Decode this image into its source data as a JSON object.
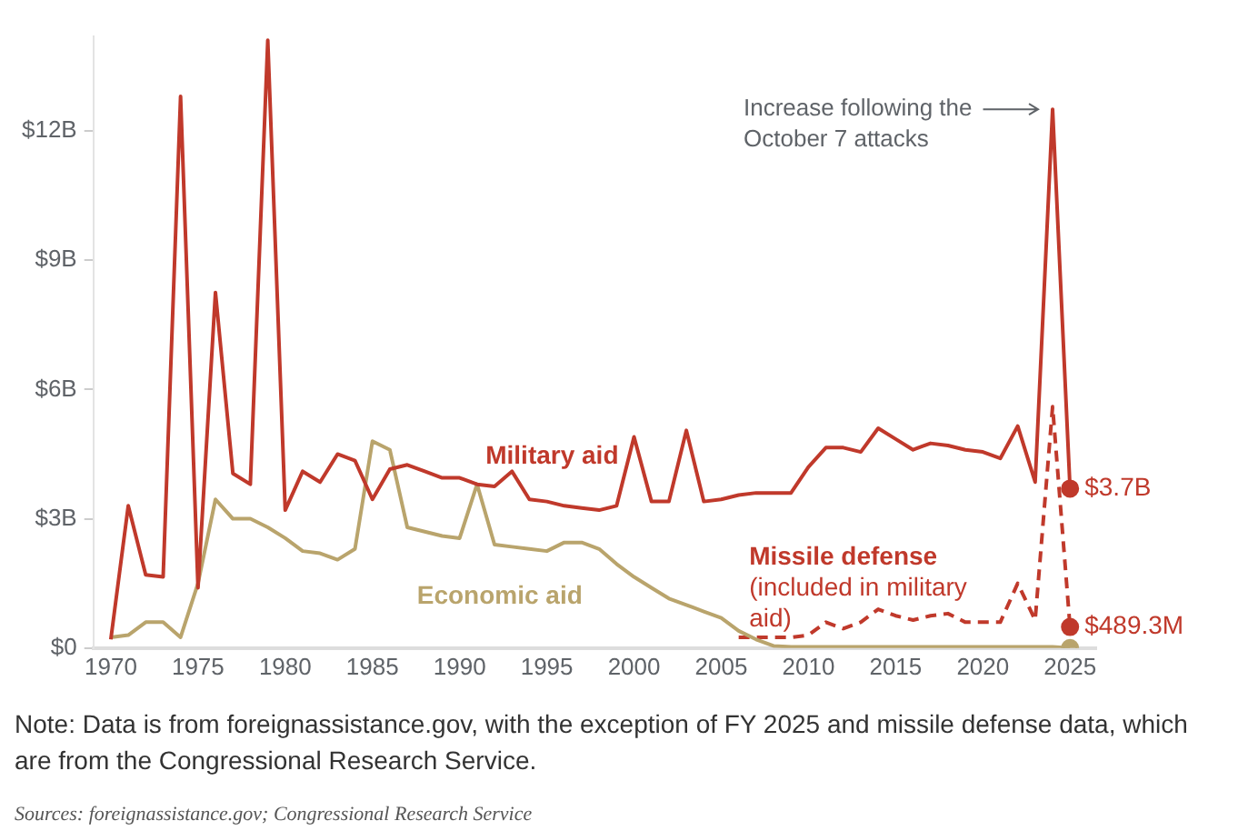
{
  "chart_data": {
    "type": "line",
    "x": [
      1970,
      1971,
      1972,
      1973,
      1974,
      1975,
      1976,
      1977,
      1978,
      1979,
      1980,
      1981,
      1982,
      1983,
      1984,
      1985,
      1986,
      1987,
      1988,
      1989,
      1990,
      1991,
      1992,
      1993,
      1994,
      1995,
      1996,
      1997,
      1998,
      1999,
      2000,
      2001,
      2002,
      2003,
      2004,
      2005,
      2006,
      2007,
      2008,
      2009,
      2010,
      2011,
      2012,
      2013,
      2014,
      2015,
      2016,
      2017,
      2018,
      2019,
      2020,
      2021,
      2022,
      2023,
      2024,
      2025
    ],
    "series": [
      {
        "name": "Military aid",
        "color": "#c0392b",
        "line_style": "solid",
        "values": [
          0.2,
          3.3,
          1.7,
          1.65,
          12.8,
          1.4,
          8.25,
          4.05,
          3.8,
          14.1,
          3.2,
          4.1,
          3.85,
          4.5,
          4.35,
          3.45,
          4.15,
          4.25,
          4.1,
          3.95,
          3.95,
          3.8,
          3.75,
          4.1,
          3.45,
          3.4,
          3.3,
          3.25,
          3.2,
          3.3,
          4.9,
          3.4,
          3.4,
          5.05,
          3.4,
          3.45,
          3.55,
          3.6,
          3.6,
          3.6,
          4.2,
          4.65,
          4.65,
          4.55,
          5.1,
          4.85,
          4.6,
          4.75,
          4.7,
          4.6,
          4.55,
          4.4,
          5.15,
          3.85,
          12.5,
          3.7
        ],
        "value_labels": [
          null,
          null,
          null,
          null,
          null,
          null,
          null,
          null,
          null,
          null,
          null,
          null,
          null,
          null,
          null,
          null,
          null,
          null,
          null,
          null,
          null,
          null,
          null,
          null,
          null,
          null,
          null,
          null,
          null,
          null,
          null,
          null,
          null,
          null,
          null,
          null,
          null,
          null,
          null,
          null,
          null,
          null,
          null,
          null,
          null,
          null,
          null,
          null,
          null,
          null,
          null,
          null,
          null,
          null,
          null,
          "$3.7B"
        ]
      },
      {
        "name": "Economic aid",
        "color": "#b9a46c",
        "line_style": "solid",
        "values": [
          0.25,
          0.3,
          0.6,
          0.6,
          0.25,
          1.5,
          3.45,
          3.0,
          3.0,
          2.8,
          2.55,
          2.25,
          2.2,
          2.05,
          2.3,
          4.8,
          4.6,
          2.8,
          2.7,
          2.6,
          2.55,
          3.8,
          2.4,
          2.35,
          2.3,
          2.25,
          2.45,
          2.45,
          2.3,
          1.95,
          1.65,
          1.4,
          1.15,
          1.0,
          0.85,
          0.7,
          0.4,
          0.2,
          0.05,
          0.03,
          0.03,
          0.03,
          0.03,
          0.03,
          0.03,
          0.03,
          0.03,
          0.03,
          0.03,
          0.03,
          0.03,
          0.03,
          0.03,
          0.03,
          0.03,
          0
        ]
      },
      {
        "name": "Missile defense",
        "color": "#c0392b",
        "line_style": "dashed",
        "x": [
          2006,
          2007,
          2008,
          2009,
          2010,
          2011,
          2012,
          2013,
          2014,
          2015,
          2016,
          2017,
          2018,
          2019,
          2020,
          2021,
          2022,
          2023,
          2024,
          2025
        ],
        "values": [
          0.25,
          0.25,
          0.25,
          0.25,
          0.3,
          0.6,
          0.45,
          0.6,
          0.9,
          0.75,
          0.65,
          0.75,
          0.8,
          0.6,
          0.6,
          0.6,
          1.5,
          0.65,
          5.6,
          0.4893
        ]
      }
    ],
    "xlim": [
      1969,
      2026.5
    ],
    "xticks": [
      1970,
      1975,
      1980,
      1985,
      1990,
      1995,
      2000,
      2005,
      2010,
      2015,
      2020,
      2025
    ],
    "ylim": [
      0,
      14.2
    ],
    "yticks": [
      {
        "value": 0,
        "label": "$0"
      },
      {
        "value": 3,
        "label": "$3B"
      },
      {
        "value": 6,
        "label": "$6B"
      },
      {
        "value": 9,
        "label": "$9B"
      },
      {
        "value": 12,
        "label": "$12B"
      }
    ],
    "grid": false,
    "legend": false,
    "annotations": [
      {
        "text": "Increase following the October 7 attacks",
        "x": 2024,
        "y": 12.5
      },
      "(included in military aid)",
      "$489.3M",
      "Note: Data is from foreignassistance.gov, with the exception of FY 2025 and missile defense data, which are from the Congressional Research Service.",
      "Sources: foreignassistance.gov; Congressional Research Service"
    ]
  }
}
